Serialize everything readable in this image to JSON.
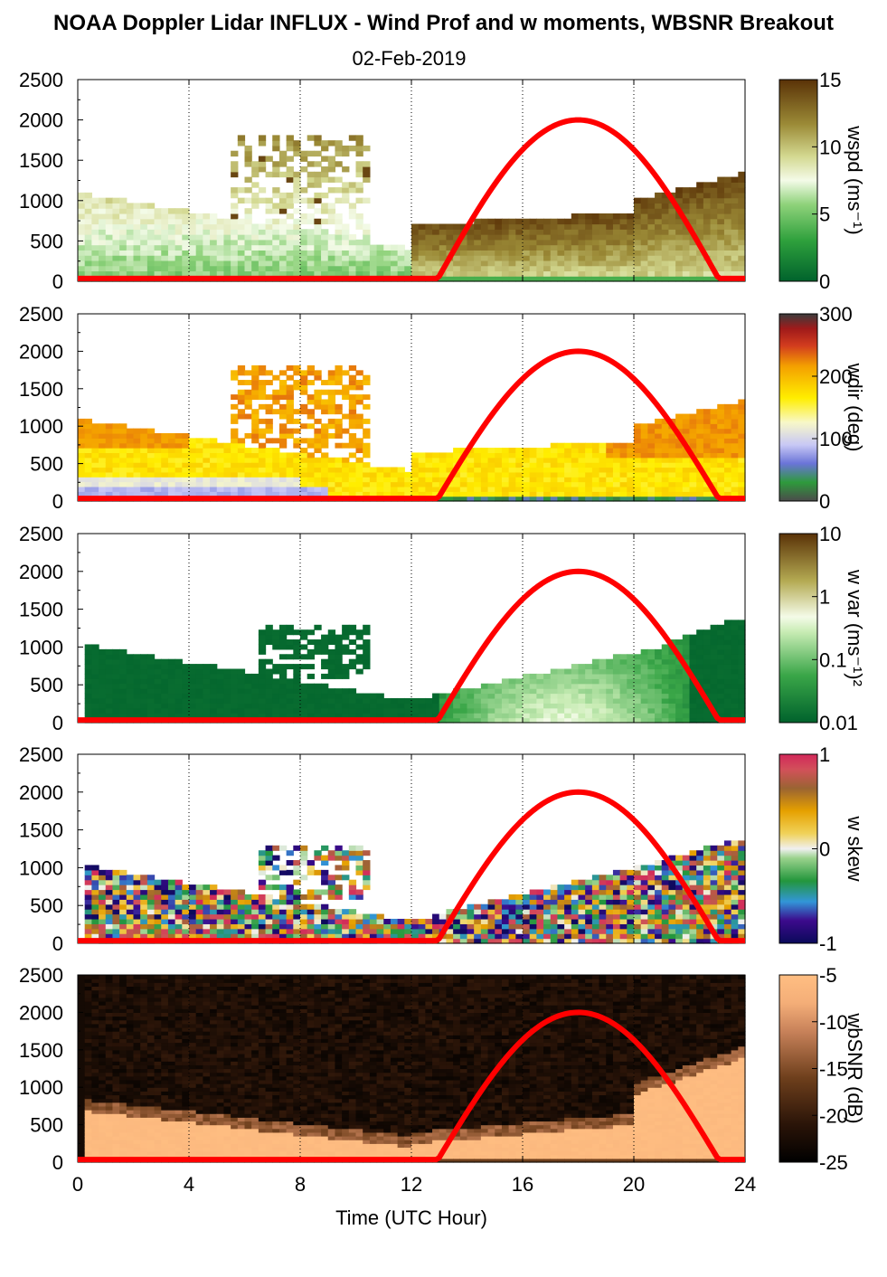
{
  "title": "NOAA Doppler Lidar INFLUX - Wind Prof and w moments, WBSNR Breakout",
  "subtitle": "02-Feb-2019",
  "colors": {
    "sun_curve": "#ff0000",
    "axis": "#000000"
  },
  "chart_data": {
    "type": "heatmap",
    "xlabel": "Time (UTC Hour)",
    "xlim": [
      0,
      24
    ],
    "xticks": [
      "0",
      "4",
      "8",
      "12",
      "16",
      "20",
      "24"
    ],
    "ylim": [
      0,
      2500
    ],
    "yticks": [
      "0",
      "500",
      "1000",
      "1500",
      "2000",
      "2500"
    ],
    "grid": "vertical dotted at 4-hour intervals",
    "sun_elevation_curve": {
      "start_hour": 12.9,
      "peak_hour": 18.0,
      "end_hour": 23.1,
      "peak_height": 2000
    },
    "panels": [
      {
        "name": "wspd",
        "colorbar_label": "wspd (ms⁻¹)",
        "cbar_ticks": [
          "0",
          "5",
          "10",
          "15"
        ],
        "cbar_range": [
          0,
          15
        ],
        "colormap": "green-white-brown"
      },
      {
        "name": "wdir",
        "colorbar_label": "wdir (deg)",
        "cbar_ticks": [
          "0",
          "100",
          "200",
          "300"
        ],
        "cbar_range": [
          0,
          360
        ],
        "colormap": "gray-green-blue-white-yellow-orange-red-dark"
      },
      {
        "name": "w var",
        "colorbar_label": "w var (ms⁻¹)²",
        "cbar_ticks": [
          "0.01",
          "0.1",
          "1",
          "10"
        ],
        "cbar_range": [
          0.01,
          10
        ],
        "colormap": "green-white-brown (log)"
      },
      {
        "name": "w skew",
        "colorbar_label": "w skew",
        "cbar_ticks": [
          "-1",
          "0",
          "1"
        ],
        "cbar_range": [
          -1,
          1
        ],
        "colormap": "navy-blue-green-white-yellow-brown-pink"
      },
      {
        "name": "wbSNR",
        "colorbar_label": "wbSNR (dB)",
        "cbar_ticks": [
          "-25",
          "-20",
          "-15",
          "-10",
          "-5"
        ],
        "cbar_range": [
          -25,
          -5
        ],
        "colormap": "black-brown-peach"
      }
    ]
  }
}
